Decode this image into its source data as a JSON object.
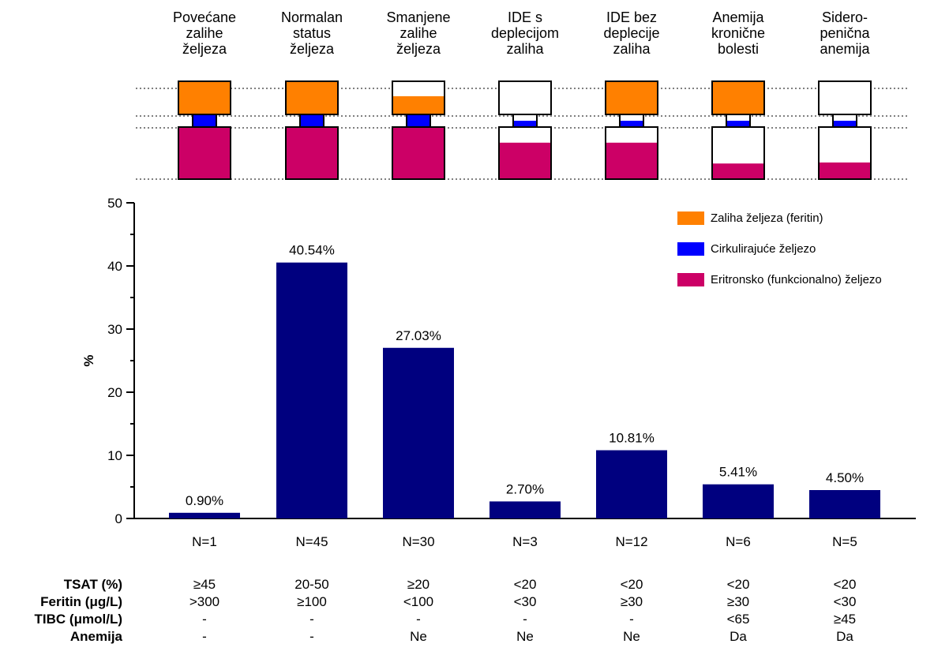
{
  "chart_data": {
    "type": "bar",
    "ylabel": "%",
    "ylim": [
      0,
      50
    ],
    "yticks": [
      0,
      10,
      20,
      30,
      40,
      50
    ],
    "categories": [
      "Povećane\nzalihe\nželjeza",
      "Normalan\nstatus\nželjeza",
      "Smanjene\nzalihe\nželjeza",
      "IDE s\ndeplecijom\nzaliha",
      "IDE bez\ndeplecije\nzaliha",
      "Anemija\nkronične\nbolesti",
      "Sidero-\npenična\nanemija"
    ],
    "values": [
      0.9,
      40.54,
      27.03,
      2.7,
      10.81,
      5.41,
      4.5
    ],
    "data_labels": [
      "0.90%",
      "40.54%",
      "27.03%",
      "2.70%",
      "10.81%",
      "5.41%",
      "4.50%"
    ],
    "n_labels": [
      "N=1",
      "N=45",
      "N=30",
      "N=3",
      "N=12",
      "N=6",
      "N=5"
    ],
    "bar_color": "#00007f",
    "legend": {
      "placement": "top-right",
      "items": [
        {
          "label": "Zaliha željeza (feritin)",
          "color": "#ff8000"
        },
        {
          "label": "Cirkulirajuće željezo",
          "color": "#0000ff"
        },
        {
          "label": "Eritronsko (funkcionalno) željezo",
          "color": "#cc0066"
        }
      ]
    },
    "iron_pools": [
      {
        "store": 1.0,
        "circulating": 1.0,
        "erythron": 1.0
      },
      {
        "store": 1.0,
        "circulating": 1.0,
        "erythron": 1.0
      },
      {
        "store": 0.55,
        "circulating": 1.0,
        "erythron": 1.0
      },
      {
        "store": 0.0,
        "circulating": 0.5,
        "erythron": 0.7
      },
      {
        "store": 1.0,
        "circulating": 0.5,
        "erythron": 0.7
      },
      {
        "store": 1.0,
        "circulating": 0.5,
        "erythron": 0.3
      },
      {
        "store": 0.0,
        "circulating": 0.5,
        "erythron": 0.32
      }
    ],
    "table": {
      "rows": [
        {
          "label": "TSAT (%)",
          "values": [
            "≥45",
            "20-50",
            "≥20",
            "<20",
            "<20",
            "<20",
            "<20"
          ]
        },
        {
          "label": "Feritin (μg/L)",
          "values": [
            ">300",
            "≥100",
            "<100",
            "<30",
            "≥30",
            "≥30",
            "<30"
          ]
        },
        {
          "label": "TIBC (μmol/L)",
          "values": [
            "-",
            "-",
            "-",
            "-",
            "-",
            "<65",
            "≥45"
          ]
        },
        {
          "label": "Anemija",
          "values": [
            "-",
            "-",
            "Ne",
            "Ne",
            "Ne",
            "Da",
            "Da"
          ]
        }
      ]
    }
  }
}
